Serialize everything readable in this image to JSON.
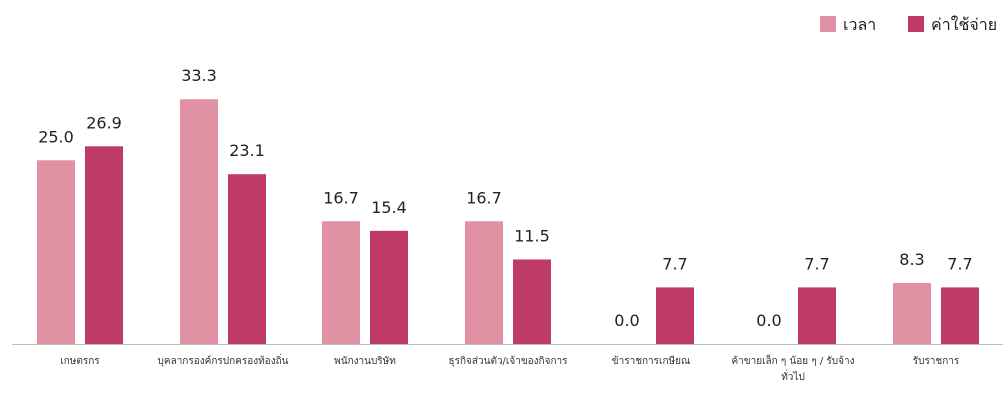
{
  "chart_data": {
    "type": "bar",
    "categories": [
      [
        "เกษตรกร"
      ],
      [
        "บุคลากรองค์กรปกครองท้องถิ่น"
      ],
      [
        "พนักงานบริษัท"
      ],
      [
        "ธุรกิจส่วนตัว/เจ้าของกิจการ"
      ],
      [
        "ข้าราชการเกษียณ"
      ],
      [
        "ค้าขายเล็ก ๆ น้อย ๆ / รับจ้าง",
        "ทั่วไป"
      ],
      [
        "รับราชการ"
      ]
    ],
    "series": [
      {
        "name": "เวลา",
        "color": "#E091A4",
        "values": [
          25.0,
          33.3,
          16.7,
          16.7,
          0.0,
          0.0,
          8.3
        ],
        "value_labels": [
          "25.0",
          "33.3",
          "16.7",
          "16.7",
          "0.0",
          "0.0",
          "8.3"
        ]
      },
      {
        "name": "ค่าใช้จ่าย",
        "color": "#BE3B65",
        "values": [
          26.9,
          23.1,
          15.4,
          11.5,
          7.7,
          7.7,
          7.7
        ],
        "value_labels": [
          "26.9",
          "23.1",
          "15.4",
          "11.5",
          "7.7",
          "7.7",
          "7.7"
        ]
      }
    ],
    "title": "",
    "xlabel": "",
    "ylabel": "",
    "ylim": [
      0,
      40
    ],
    "grid": false,
    "legend": "top-right",
    "axis_color": "#BFBFBF"
  }
}
